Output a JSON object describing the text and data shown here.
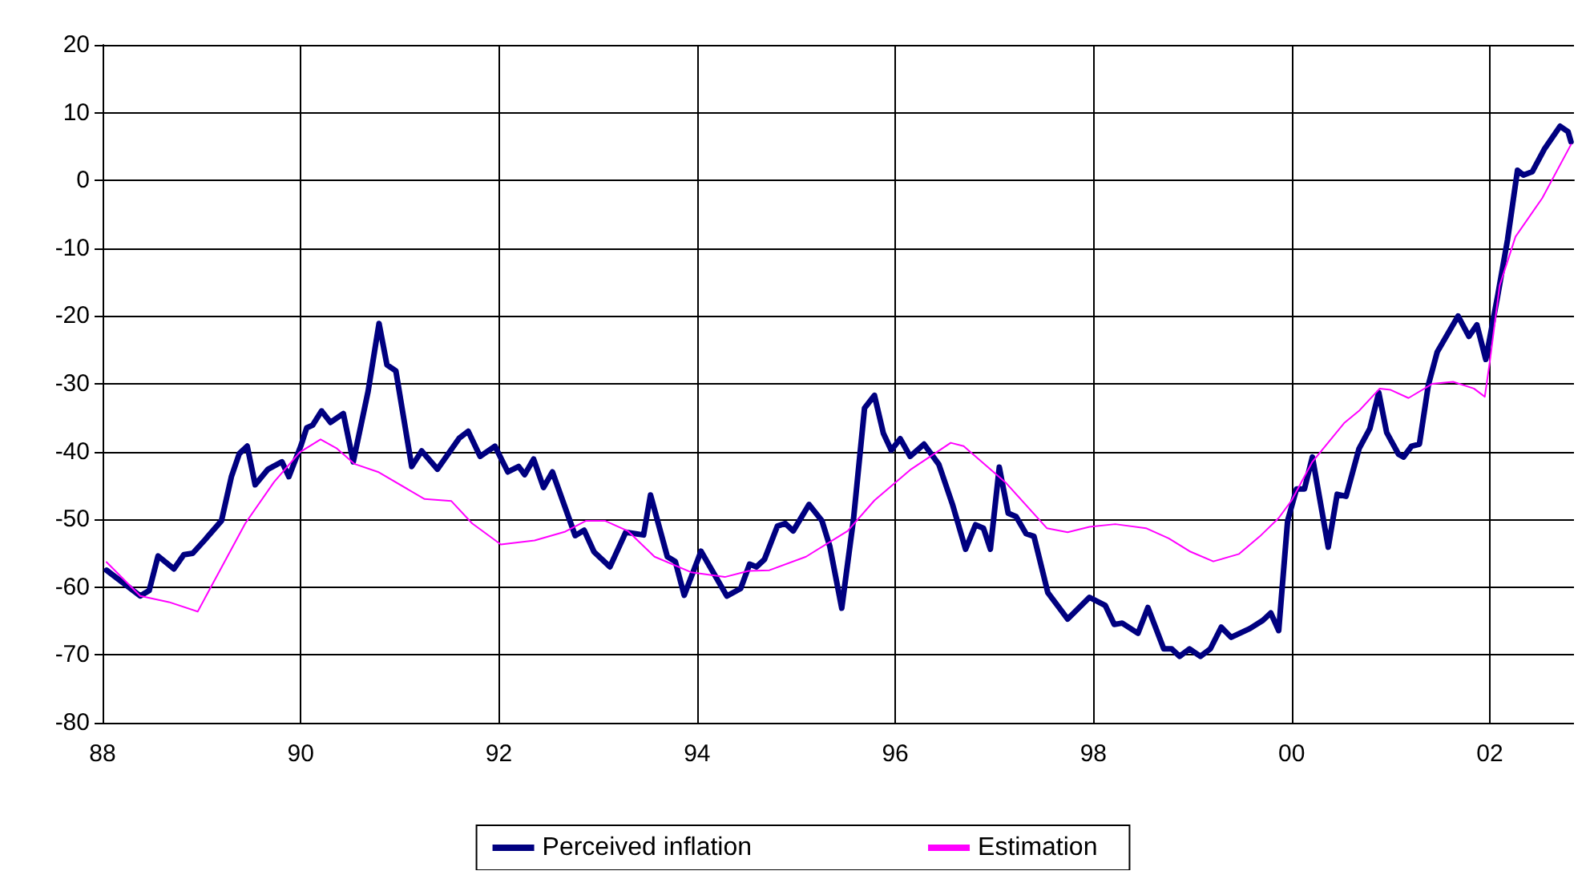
{
  "chart_data": {
    "type": "line",
    "xlim": [
      1988,
      2002.85
    ],
    "ylim": [
      -80,
      20
    ],
    "xticks": [
      {
        "value": 1988,
        "label": "88"
      },
      {
        "value": 1990,
        "label": "90"
      },
      {
        "value": 1992,
        "label": "92"
      },
      {
        "value": 1994,
        "label": "94"
      },
      {
        "value": 1996,
        "label": "96"
      },
      {
        "value": 1998,
        "label": "98"
      },
      {
        "value": 2000,
        "label": "00"
      },
      {
        "value": 2002,
        "label": "02"
      }
    ],
    "yticks": [
      -80,
      -70,
      -60,
      -50,
      -40,
      -30,
      -20,
      -10,
      0,
      10,
      20
    ],
    "grid": true,
    "legend": "bottom",
    "marker": "none",
    "line_style": "solid",
    "series": [
      {
        "name": "Perceived inflation",
        "color": "#000080",
        "x": [
          1988.04,
          1988.38,
          1988.47,
          1988.56,
          1988.72,
          1988.82,
          1988.91,
          1989.04,
          1989.2,
          1989.3,
          1989.38,
          1989.46,
          1989.54,
          1989.67,
          1989.81,
          1989.88,
          1990.0,
          1990.06,
          1990.12,
          1990.21,
          1990.3,
          1990.43,
          1990.53,
          1990.68,
          1990.79,
          1990.87,
          1990.96,
          1991.12,
          1991.22,
          1991.38,
          1991.6,
          1991.69,
          1991.81,
          1991.96,
          1992.09,
          1992.2,
          1992.26,
          1992.35,
          1992.45,
          1992.54,
          1992.77,
          1992.86,
          1992.96,
          1993.12,
          1993.28,
          1993.46,
          1993.53,
          1993.7,
          1993.78,
          1993.87,
          1994.04,
          1994.3,
          1994.44,
          1994.53,
          1994.6,
          1994.68,
          1994.81,
          1994.89,
          1994.97,
          1995.13,
          1995.26,
          1995.34,
          1995.46,
          1995.58,
          1995.69,
          1995.79,
          1995.88,
          1995.96,
          1996.05,
          1996.15,
          1996.29,
          1996.44,
          1996.58,
          1996.71,
          1996.81,
          1996.89,
          1996.96,
          1997.05,
          1997.14,
          1997.22,
          1997.32,
          1997.4,
          1997.54,
          1997.74,
          1997.96,
          1998.12,
          1998.21,
          1998.29,
          1998.45,
          1998.55,
          1998.71,
          1998.79,
          1998.87,
          1998.97,
          1999.08,
          1999.18,
          1999.29,
          1999.39,
          1999.58,
          1999.71,
          1999.79,
          1999.87,
          1999.96,
          2000.05,
          2000.13,
          2000.21,
          2000.37,
          2000.46,
          2000.55,
          2000.68,
          2000.79,
          2000.88,
          2000.96,
          2001.08,
          2001.13,
          2001.21,
          2001.29,
          2001.38,
          2001.47,
          2001.68,
          2001.79,
          2001.87,
          2001.96,
          2002.08,
          2002.18,
          2002.28,
          2002.34,
          2002.43,
          2002.55,
          2002.71,
          2002.79,
          2002.82
        ],
        "values": [
          -57.5,
          -61.3,
          -60.5,
          -55.4,
          -57.3,
          -55.2,
          -55,
          -52.9,
          -50.2,
          -43.7,
          -40.3,
          -39.2,
          -44.9,
          -42.6,
          -41.5,
          -43.7,
          -39.2,
          -36.5,
          -36.1,
          -34,
          -35.7,
          -34.4,
          -41.5,
          -31.1,
          -21.1,
          -27.2,
          -28.1,
          -42.2,
          -39.9,
          -42.6,
          -38,
          -37,
          -40.7,
          -39.2,
          -43,
          -42.2,
          -43.4,
          -41.1,
          -45.3,
          -43,
          -52.4,
          -51.6,
          -54.8,
          -57,
          -51.9,
          -52.3,
          -46.4,
          -55.5,
          -56.2,
          -61.2,
          -54.7,
          -61.3,
          -60.2,
          -56.6,
          -57,
          -55.9,
          -51,
          -50.6,
          -51.7,
          -47.8,
          -50.2,
          -54,
          -63.1,
          -49.8,
          -33.6,
          -31.7,
          -37.3,
          -39.8,
          -38.1,
          -40.7,
          -38.9,
          -41.9,
          -47.9,
          -54.4,
          -50.8,
          -51.3,
          -54.4,
          -42.3,
          -49.1,
          -49.6,
          -52.1,
          -52.5,
          -60.8,
          -64.7,
          -61.5,
          -62.7,
          -65.5,
          -65.3,
          -66.8,
          -63,
          -69.1,
          -69.1,
          -70.2,
          -69.1,
          -70.2,
          -69.1,
          -65.9,
          -67.4,
          -66.1,
          -64.9,
          -63.8,
          -66.4,
          -50.2,
          -45.5,
          -45.5,
          -40.8,
          -54.1,
          -46.3,
          -46.6,
          -39.6,
          -36.6,
          -31.3,
          -37.2,
          -40.4,
          -40.8,
          -39.2,
          -38.9,
          -30.2,
          -25.3,
          -20,
          -23,
          -21.3,
          -26.4,
          -17,
          -8.7,
          1.5,
          0.8,
          1.3,
          4.6,
          8,
          7.2,
          5.7
        ]
      },
      {
        "name": "Estimation",
        "color": "#ff00ff",
        "x": [
          1988.04,
          1988.38,
          1988.67,
          1988.96,
          1989.2,
          1989.44,
          1989.73,
          1989.99,
          1990.2,
          1990.36,
          1990.54,
          1990.78,
          1991.25,
          1991.52,
          1991.73,
          1992.02,
          1992.36,
          1992.67,
          1992.88,
          1993.07,
          1993.3,
          1993.57,
          1993.94,
          1994.28,
          1994.52,
          1994.73,
          1995.1,
          1995.52,
          1995.79,
          1996.16,
          1996.56,
          1996.69,
          1997.11,
          1997.53,
          1997.74,
          1997.96,
          1998.22,
          1998.53,
          1998.76,
          1998.97,
          1999.21,
          1999.47,
          1999.68,
          1999.87,
          2000,
          2000.21,
          2000.53,
          2000.68,
          2000.89,
          2001,
          2001.18,
          2001.42,
          2001.63,
          2001.84,
          2001.95,
          2002,
          2002.1,
          2002.26,
          2002.53,
          2002.82
        ],
        "values": [
          -56.3,
          -61.3,
          -62.2,
          -63.6,
          -57.1,
          -50.6,
          -44.5,
          -40.1,
          -38.2,
          -39.5,
          -41.8,
          -43,
          -47,
          -47.3,
          -50.6,
          -53.7,
          -53.1,
          -51.8,
          -50.2,
          -50.2,
          -51.7,
          -55.5,
          -57.8,
          -58.5,
          -57.6,
          -57.5,
          -55.5,
          -51.7,
          -47.2,
          -42.6,
          -38.7,
          -39.2,
          -44.5,
          -51.3,
          -51.9,
          -51.1,
          -50.7,
          -51.3,
          -52.8,
          -54.7,
          -56.2,
          -55.1,
          -52.5,
          -49.8,
          -47.2,
          -41.5,
          -35.8,
          -34,
          -30.7,
          -30.9,
          -32.1,
          -30,
          -29.7,
          -30.7,
          -31.9,
          -26.8,
          -15.5,
          -8.3,
          -2.6,
          5.3
        ]
      }
    ]
  }
}
